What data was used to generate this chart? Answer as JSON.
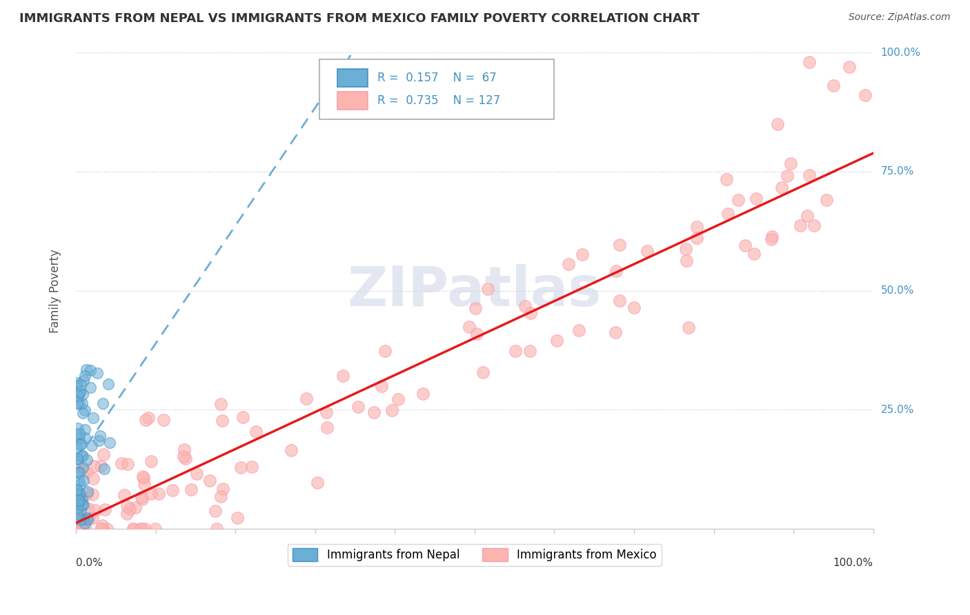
{
  "title": "IMMIGRANTS FROM NEPAL VS IMMIGRANTS FROM MEXICO FAMILY POVERTY CORRELATION CHART",
  "source": "Source: ZipAtlas.com",
  "ylabel": "Family Poverty",
  "nepal_color": "#6baed6",
  "nepal_edge_color": "#4393c3",
  "mexico_color": "#fbb4ae",
  "mexico_edge_color": "#fa9fb5",
  "nepal_line_color": "#6baed6",
  "mexico_line_color": "#e41a1c",
  "label_color": "#4393c3",
  "watermark_color": "#d0d8e8",
  "nepal_r": 0.157,
  "nepal_n": 67,
  "mexico_r": 0.735,
  "mexico_n": 127
}
